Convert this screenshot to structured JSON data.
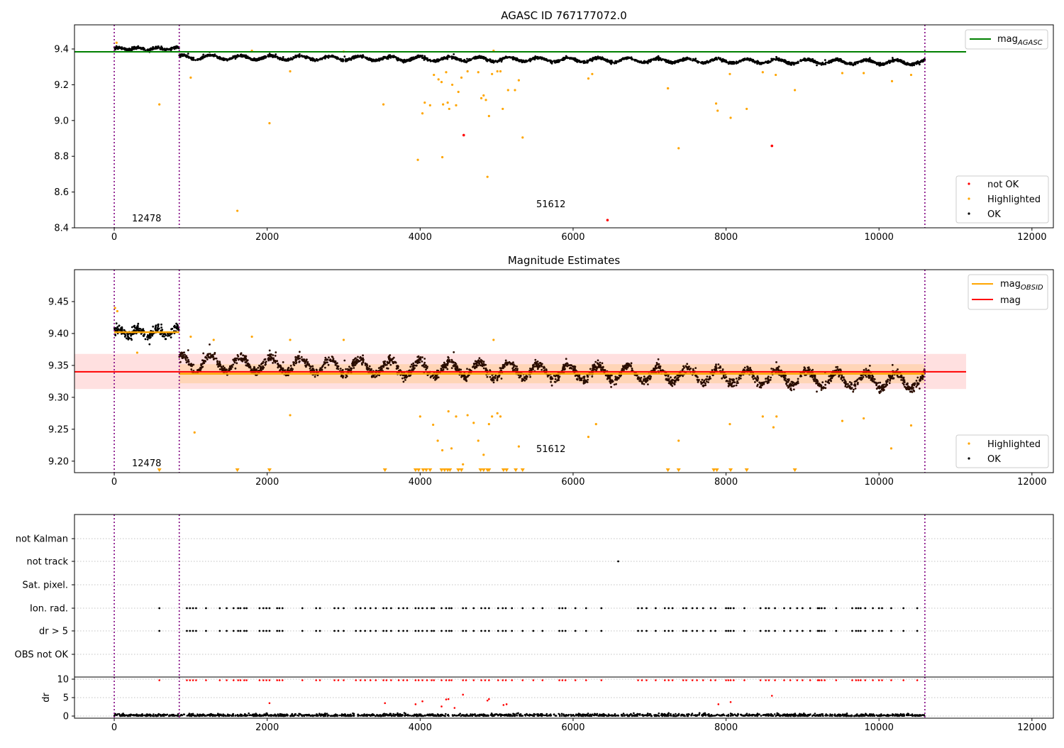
{
  "panel1": {
    "title": "AGASC ID 767177072.0",
    "xticks": [
      0,
      2000,
      4000,
      6000,
      8000,
      10000,
      12000
    ],
    "yticks": [
      "8.4",
      "8.6",
      "8.8",
      "9.0",
      "9.2",
      "9.4"
    ],
    "xlim": [
      -520,
      12280
    ],
    "ylim": [
      8.4,
      9.535
    ],
    "legend_line": "mag",
    "legend_line_sub": "AGASC",
    "legend_points": [
      "not OK",
      "Highlighted",
      "OK"
    ],
    "obsid_labels": [
      "12478",
      "51612"
    ],
    "mag_agasc": 9.384
  },
  "panel2": {
    "title": "Magnitude Estimates",
    "xticks": [
      0,
      2000,
      4000,
      6000,
      8000,
      10000,
      12000
    ],
    "yticks": [
      "9.20",
      "9.25",
      "9.30",
      "9.35",
      "9.40",
      "9.45"
    ],
    "xlim": [
      -520,
      12280
    ],
    "ylim": [
      9.182,
      9.5
    ],
    "legend_line1": "mag",
    "legend_line1_sub": "OBSID",
    "legend_line2": "mag",
    "legend_points": [
      "Highlighted",
      "OK"
    ],
    "obsid_labels": [
      "12478",
      "51612"
    ],
    "mag": 9.34,
    "mag_band": [
      9.313,
      9.368
    ],
    "mag_obsid_1": 9.402,
    "mag_obsid_2": 9.337
  },
  "panel3": {
    "ylabels": [
      "not Kalman",
      "not track",
      "Sat. pixel.",
      "Ion. rad.",
      "dr > 5",
      "OBS not OK"
    ]
  },
  "panel4": {
    "ylabel": "dr",
    "yticks": [
      "0",
      "5",
      "10"
    ],
    "xticks": [
      0,
      2000,
      4000,
      6000,
      8000,
      10000,
      12000
    ]
  },
  "chart_data": [
    {
      "type": "scatter",
      "title": "AGASC ID 767177072.0",
      "series": [
        {
          "name": "not OK",
          "color": "#ff0000",
          "x": [
            4570,
            8600,
            6450
          ],
          "y": [
            8.918,
            8.858,
            8.443
          ]
        },
        {
          "name": "Highlighted",
          "color": "#ffa500",
          "x": [
            590,
            1610,
            2030,
            3970,
            4290,
            4880,
            5340,
            7380,
            6200,
            7240,
            7870,
            8270,
            8900,
            10170,
            9520
          ],
          "y": [
            9.09,
            8.495,
            8.985,
            8.78,
            8.795,
            8.685,
            8.905,
            8.845,
            9.235,
            9.18,
            9.095,
            9.065,
            9.17,
            9.22,
            9.265
          ]
        },
        {
          "name": "OK",
          "color": "#000000",
          "x_range": [
            0,
            10600
          ],
          "y_range": [
            9.29,
            9.43
          ]
        }
      ],
      "lines": [
        {
          "name": "mag_AGASC",
          "color": "#008000",
          "y": 9.384
        }
      ],
      "vlines": [
        0,
        850,
        10600
      ],
      "xlim": [
        -520,
        12280
      ],
      "ylim": [
        8.4,
        9.535
      ]
    },
    {
      "type": "scatter",
      "title": "Magnitude Estimates",
      "series": [
        {
          "name": "Highlighted",
          "color": "#ffa500"
        },
        {
          "name": "OK",
          "color": "#000000",
          "x_range": [
            0,
            10600
          ],
          "y_range": [
            9.28,
            9.43
          ]
        }
      ],
      "lines": [
        {
          "name": "mag_OBSID",
          "color": "#ffa500",
          "segments": [
            [
              0,
              850,
              9.402
            ],
            [
              850,
              10600,
              9.337
            ]
          ]
        },
        {
          "name": "mag",
          "color": "#ff0000",
          "y": 9.34
        }
      ],
      "vlines": [
        0,
        850,
        10600
      ],
      "xlim": [
        -520,
        12280
      ],
      "ylim": [
        9.182,
        9.5
      ]
    }
  ],
  "colors": {
    "ok": "#000000",
    "highlighted": "#ffa500",
    "not_ok": "#ff0000",
    "agasc_line": "#008000",
    "mag_line": "#ff0000",
    "obsid_line": "#ffa500",
    "vline": "#800080"
  }
}
